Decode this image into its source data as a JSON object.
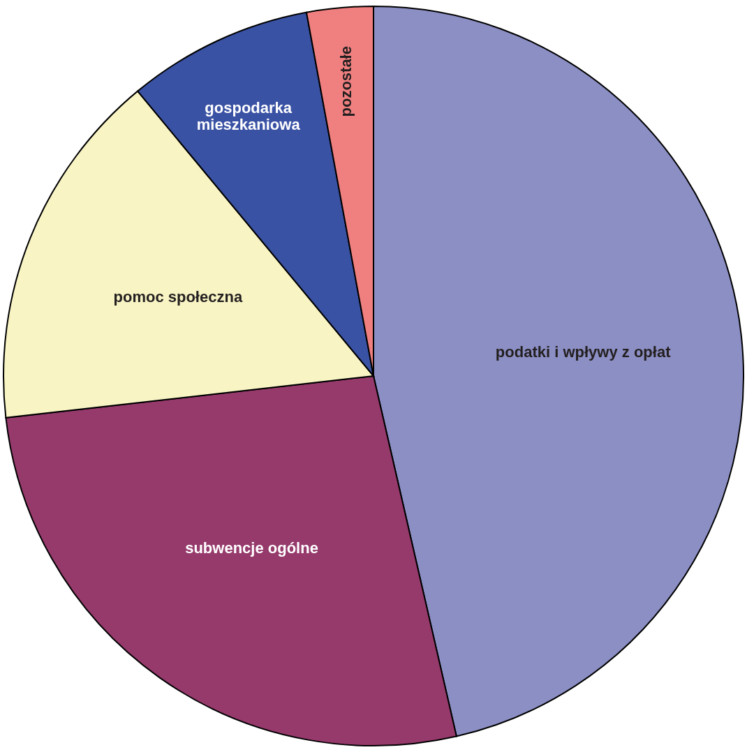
{
  "chart_data": {
    "type": "pie",
    "categories": [
      "podatki i wpływy z opłat",
      "subwencje ogólne",
      "pomoc społeczna",
      "gospodarka mieszkaniowa",
      "pozostałe"
    ],
    "values": [
      46.4,
      26.8,
      15.8,
      8.1,
      2.9
    ],
    "colors": [
      "#8c8fc4",
      "#963a6c",
      "#f8f4c4",
      "#3a52a4",
      "#f08080"
    ]
  }
}
